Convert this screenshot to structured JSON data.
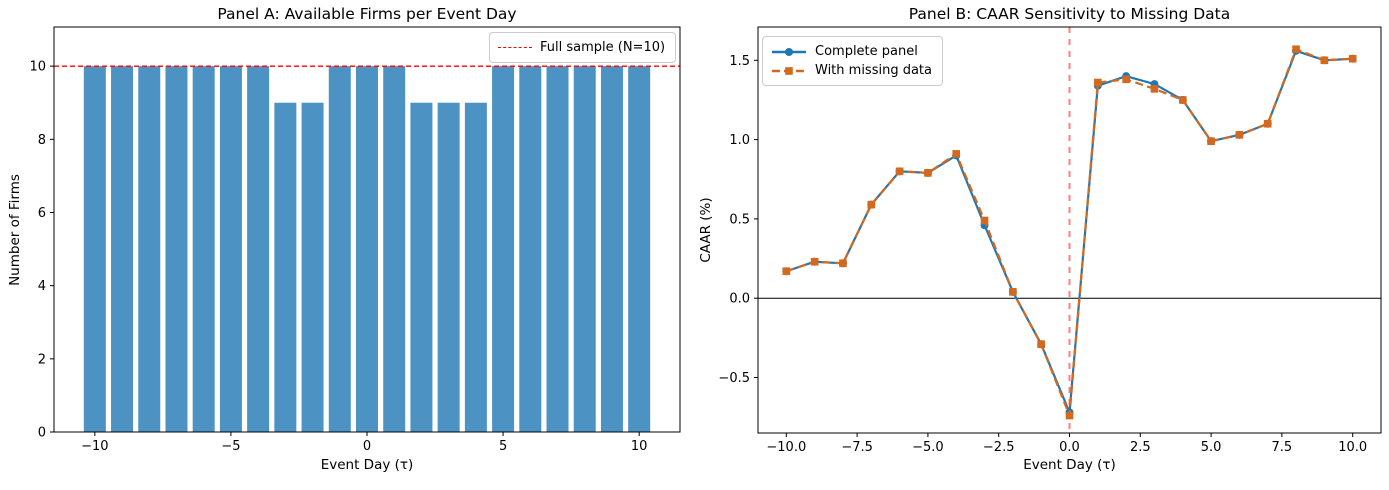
{
  "chart_data": [
    {
      "type": "bar",
      "panel": "A",
      "title": "Panel A: Available Firms per Event Day",
      "xlabel": "Event Day (τ)",
      "ylabel": "Number of Firms",
      "categories": [
        -10,
        -9,
        -8,
        -7,
        -6,
        -5,
        -4,
        -3,
        -2,
        -1,
        0,
        1,
        2,
        3,
        4,
        5,
        6,
        7,
        8,
        9,
        10
      ],
      "values": [
        10,
        10,
        10,
        10,
        10,
        10,
        10,
        9,
        9,
        10,
        10,
        10,
        9,
        9,
        9,
        10,
        10,
        10,
        10,
        10,
        10
      ],
      "bar_color": "#4c92c3",
      "xtick_values": [
        -10,
        -5,
        0,
        5,
        10
      ],
      "xtick_labels": [
        "−10",
        "−5",
        "0",
        "5",
        "10"
      ],
      "ytick_values": [
        0,
        2,
        4,
        6,
        8,
        10
      ],
      "ytick_labels": [
        "0",
        "2",
        "4",
        "6",
        "8",
        "10"
      ],
      "xlim": [
        -11.5,
        11.5
      ],
      "ylim": [
        0,
        11.07
      ],
      "grid": false,
      "legend_position": "upper right",
      "reference_line": {
        "y": 10,
        "color": "#ff0000",
        "style": "dashed",
        "label": "Full sample (N=10)"
      }
    },
    {
      "type": "line",
      "panel": "B",
      "title": "Panel B: CAAR Sensitivity to Missing Data",
      "xlabel": "Event Day (τ)",
      "ylabel": "CAAR (%)",
      "x": [
        -10,
        -9,
        -8,
        -7,
        -6,
        -5,
        -4,
        -3,
        -2,
        -1,
        0,
        1,
        2,
        3,
        4,
        5,
        6,
        7,
        8,
        9,
        10
      ],
      "series": [
        {
          "name": "Complete panel",
          "color": "#1f77b4",
          "marker": "circle",
          "line_style": "solid",
          "values": [
            0.17,
            0.23,
            0.22,
            0.59,
            0.8,
            0.79,
            0.9,
            0.46,
            0.04,
            -0.29,
            -0.72,
            1.34,
            1.4,
            1.35,
            1.25,
            0.99,
            1.03,
            1.1,
            1.56,
            1.5,
            1.51
          ]
        },
        {
          "name": "With missing data",
          "color": "#d2691e",
          "marker": "square",
          "line_style": "dashed",
          "values": [
            0.17,
            0.23,
            0.22,
            0.59,
            0.8,
            0.79,
            0.91,
            0.49,
            0.04,
            -0.29,
            -0.74,
            1.36,
            1.38,
            1.32,
            1.25,
            0.99,
            1.03,
            1.1,
            1.57,
            1.5,
            1.51
          ]
        }
      ],
      "xtick_values": [
        -10,
        -7.5,
        -5,
        -2.5,
        0,
        2.5,
        5,
        7.5,
        10
      ],
      "xtick_labels": [
        "−10.0",
        "−7.5",
        "−5.0",
        "−2.5",
        "0.0",
        "2.5",
        "5.0",
        "7.5",
        "10.0"
      ],
      "ytick_values": [
        -0.5,
        0,
        0.5,
        1,
        1.5
      ],
      "ytick_labels": [
        "−0.5",
        "0.0",
        "0.5",
        "1.0",
        "1.5"
      ],
      "xlim": [
        -11,
        11
      ],
      "ylim": [
        -0.85,
        1.71
      ],
      "grid": false,
      "legend_position": "upper left",
      "zero_line": {
        "y": 0,
        "color": "#000000"
      },
      "event_line": {
        "x": 0,
        "color": "#ff0000",
        "opacity": 0.5,
        "style": "dashed"
      }
    }
  ]
}
